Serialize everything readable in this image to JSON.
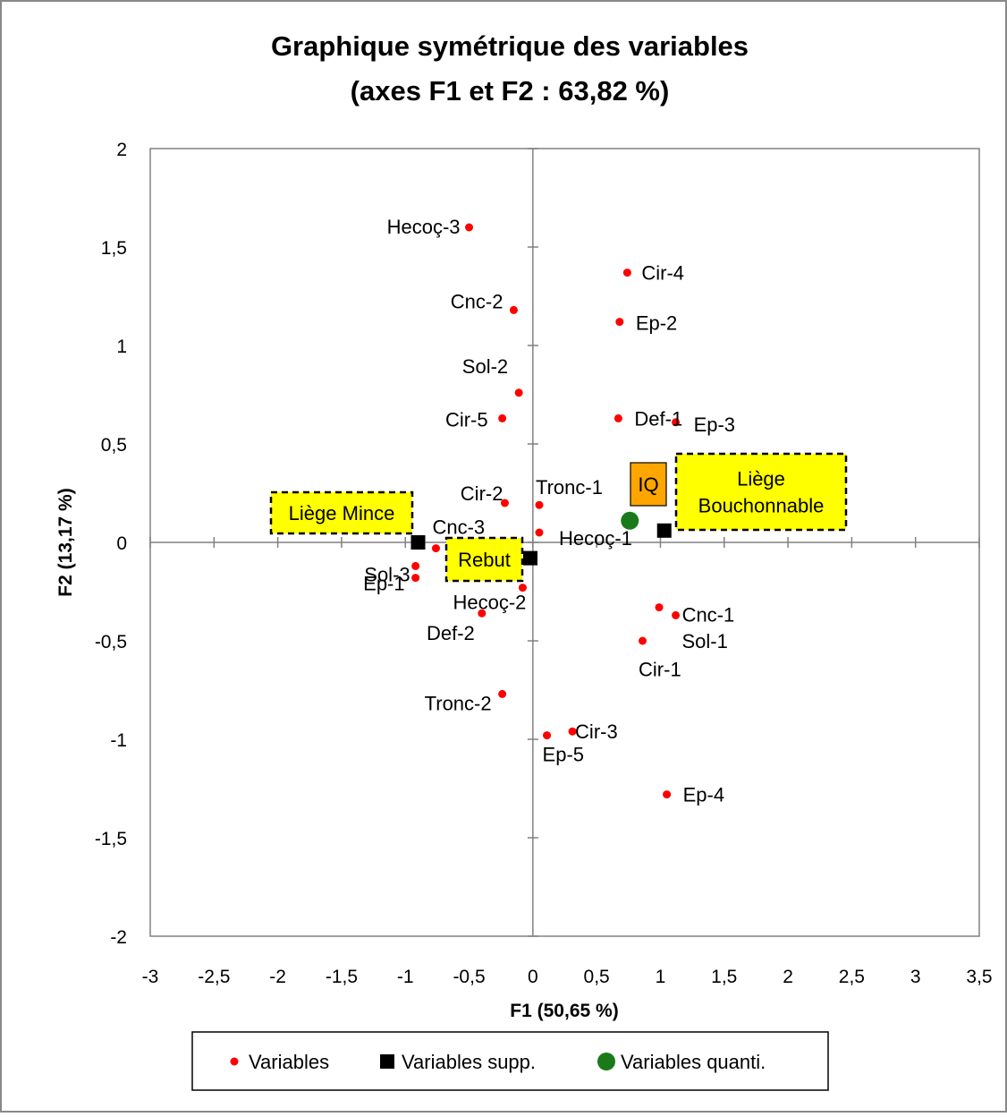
{
  "chart_data": {
    "type": "scatter",
    "title": [
      "Graphique symétrique des variables",
      "(axes F1 et F2 : 63,82 %)"
    ],
    "xlabel": "F1 (50,65 %)",
    "ylabel": "F2 (13,17 %)",
    "xlim": [
      -3,
      3.5
    ],
    "ylim": [
      -2,
      2
    ],
    "x_ticks": [
      -3,
      -2.5,
      -2,
      -1.5,
      -1,
      -0.5,
      0,
      0.5,
      1,
      1.5,
      2,
      2.5,
      3,
      3.5
    ],
    "x_tick_labels": [
      "-3",
      "-2,5",
      "-2",
      "-1,5",
      "-1",
      "-0,5",
      "0",
      "0,5",
      "1",
      "1,5",
      "2",
      "2,5",
      "3",
      "3,5"
    ],
    "y_ticks": [
      -2,
      -1.5,
      -1,
      -0.5,
      0,
      0.5,
      1,
      1.5,
      2
    ],
    "y_tick_labels": [
      "-2",
      "-1,5",
      "-1",
      "-0,5",
      "0",
      "0,5",
      "1",
      "1,5",
      "2"
    ],
    "grid": false,
    "legend_position": "bottom",
    "series": [
      {
        "name": "Variables",
        "color": "#ff0000",
        "marker": "dot",
        "points": [
          {
            "label": "Hecoç-3",
            "x": -0.5,
            "y": 1.6
          },
          {
            "label": "Cir-4",
            "x": 0.74,
            "y": 1.37
          },
          {
            "label": "Cnc-2",
            "x": -0.15,
            "y": 1.18
          },
          {
            "label": "Ep-2",
            "x": 0.68,
            "y": 1.12
          },
          {
            "label": "Sol-2",
            "x": -0.11,
            "y": 0.76
          },
          {
            "label": "Cir-5",
            "x": -0.24,
            "y": 0.63
          },
          {
            "label": "Def-1",
            "x": 0.67,
            "y": 0.63
          },
          {
            "label": "Ep-3",
            "x": 1.12,
            "y": 0.61
          },
          {
            "label": "Cir-2",
            "x": -0.22,
            "y": 0.2
          },
          {
            "label": "Tronc-1",
            "x": 0.05,
            "y": 0.19
          },
          {
            "label": "Hecoç-1",
            "x": 0.05,
            "y": 0.05
          },
          {
            "label": "Cnc-3",
            "x": -0.76,
            "y": -0.03
          },
          {
            "label": "Ep-1",
            "x": -0.92,
            "y": -0.12
          },
          {
            "label": "Sol-3",
            "x": -0.92,
            "y": -0.18
          },
          {
            "label": "Hecoç-2",
            "x": -0.08,
            "y": -0.23
          },
          {
            "label": "Def-2",
            "x": -0.4,
            "y": -0.36
          },
          {
            "label": "Cnc-1",
            "x": 1.12,
            "y": -0.37
          },
          {
            "label": "Sol-1",
            "x": 0.86,
            "y": -0.5
          },
          {
            "label": "Cir-1",
            "x": 0.99,
            "y": -0.33
          },
          {
            "label": "Tronc-2",
            "x": -0.24,
            "y": -0.77
          },
          {
            "label": "Cir-3",
            "x": 0.31,
            "y": -0.96
          },
          {
            "label": "Ep-5",
            "x": 0.11,
            "y": -0.98
          },
          {
            "label": "Ep-4",
            "x": 1.05,
            "y": -1.28
          }
        ]
      },
      {
        "name": "Variables supp.",
        "color": "#000000",
        "marker": "square",
        "points": [
          {
            "label": "Liège Mince",
            "x": -0.9,
            "y": 0.0
          },
          {
            "label": "Rebut",
            "x": -0.02,
            "y": -0.08
          },
          {
            "label": "Liège Bouchonnable",
            "x": 1.03,
            "y": 0.06
          }
        ]
      },
      {
        "name": "Variables quanti.",
        "color": "#1a7a1a",
        "marker": "circle",
        "points": [
          {
            "label": "IQ",
            "x": 0.76,
            "y": 0.11
          }
        ]
      }
    ],
    "annotation_boxes": [
      {
        "lines": [
          "Liège Mince"
        ],
        "fill": "#ffff00",
        "border": "dashed"
      },
      {
        "lines": [
          "Rebut"
        ],
        "fill": "#ffff00",
        "border": "dashed"
      },
      {
        "lines": [
          "Liège",
          "Bouchonnable"
        ],
        "fill": "#ffff00",
        "border": "dashed"
      },
      {
        "lines": [
          "IQ"
        ],
        "fill": "#ffa500",
        "border": "solid"
      }
    ]
  }
}
